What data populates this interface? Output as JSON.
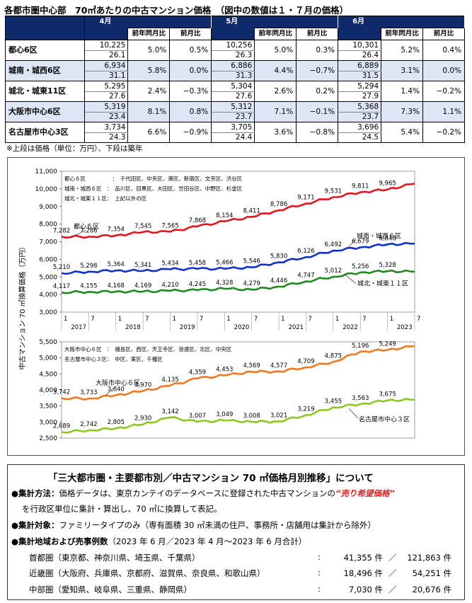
{
  "title": "各都市圏中心部　70㎡あたりの中古マンション価格　（図中の数値は１・７月の価格）",
  "table": {
    "months": [
      "4月",
      "5月",
      "6月"
    ],
    "sub_headers": [
      "前年同月比",
      "前月比"
    ],
    "rows": [
      {
        "area": "都心6区",
        "cells": [
          {
            "price": "10,225",
            "age": "26.1",
            "yoy": "5.0%",
            "mom": "0.5%"
          },
          {
            "price": "10,256",
            "age": "26.3",
            "yoy": "5.0%",
            "mom": "0.3%"
          },
          {
            "price": "10,301",
            "age": "26.4",
            "yoy": "5.2%",
            "mom": "0.4%"
          }
        ]
      },
      {
        "area": "城南・城西6区",
        "cells": [
          {
            "price": "6,934",
            "age": "31.1",
            "yoy": "5.8%",
            "mom": "0.0%"
          },
          {
            "price": "6,886",
            "age": "31.3",
            "yoy": "4.4%",
            "mom": "−0.7%"
          },
          {
            "price": "6,889",
            "age": "31.5",
            "yoy": "3.1%",
            "mom": "0.0%"
          }
        ]
      },
      {
        "area": "城北・城東11区",
        "cells": [
          {
            "price": "5,295",
            "age": "27.6",
            "yoy": "2.4%",
            "mom": "−0.3%"
          },
          {
            "price": "5,304",
            "age": "27.6",
            "yoy": "2.6%",
            "mom": "0.2%"
          },
          {
            "price": "5,294",
            "age": "27.9",
            "yoy": "1.4%",
            "mom": "−0.2%"
          }
        ]
      },
      {
        "area": "大阪市中心6区",
        "cells": [
          {
            "price": "5,319",
            "age": "23.4",
            "yoy": "8.1%",
            "mom": "0.8%"
          },
          {
            "price": "5,312",
            "age": "23.7",
            "yoy": "7.1%",
            "mom": "−0.1%"
          },
          {
            "price": "5,368",
            "age": "23.7",
            "yoy": "7.3%",
            "mom": "1.1%"
          }
        ]
      },
      {
        "area": "名古屋市中心3区",
        "cells": [
          {
            "price": "3,734",
            "age": "24.3",
            "yoy": "6.6%",
            "mom": "−0.9%"
          },
          {
            "price": "3,705",
            "age": "24.4",
            "yoy": "3.6%",
            "mom": "−0.8%"
          },
          {
            "price": "3,696",
            "age": "24.5",
            "yoy": "5.4%",
            "mom": "−0.2%"
          }
        ]
      }
    ],
    "note": "※上段は価格（単位：万円）、下段は築年"
  },
  "chart_data": {
    "type": "line",
    "ylabel": "中古マンション 70 ㎡換算価格（万円）",
    "x": [
      "2017-01",
      "2017-07",
      "2018-01",
      "2018-07",
      "2019-01",
      "2019-07",
      "2020-01",
      "2020-07",
      "2021-01",
      "2021-07",
      "2022-01",
      "2022-07",
      "2023-01",
      "2023-06"
    ],
    "x_tick_labels": [
      "1",
      "7",
      "1",
      "7",
      "1",
      "7",
      "1",
      "7",
      "1",
      "7",
      "1",
      "7",
      "1",
      "7"
    ],
    "year_labels": [
      "2017",
      "2018",
      "2019",
      "2020",
      "2021",
      "2022",
      "2023"
    ],
    "panels": [
      {
        "ylim": [
          3000,
          11000
        ],
        "yticks": [
          "3,000",
          "4,000",
          "5,000",
          "6,000",
          "7,000",
          "8,000",
          "9,000",
          "10,000",
          "11,000"
        ],
        "legend": [
          "都心６区　　　　　：　千代田区、中央区、港区、新宿区、文京区、渋谷区",
          "城南・城西６区　：　品川区、目黒区、大田区、世田谷区、中野区、杉並区",
          "城北・城東１１区：　上記以外の区"
        ],
        "series": [
          {
            "name": "都心６区",
            "color": "#E8141A",
            "values": [
              7282,
              7286,
              7354,
              7545,
              7565,
              7868,
              8154,
              8411,
              8786,
              9171,
              9531,
              9811,
              9965,
              10301
            ],
            "labels": [
              "7,282",
              "7,286",
              "7,354",
              "7,545",
              "7,565",
              "7,868",
              "8,154",
              "8,411",
              "8,786",
              "9,171",
              "9,531",
              "9,811",
              "9,965",
              ""
            ]
          },
          {
            "name": "城南・城西６区",
            "color": "#1030D0",
            "values": [
              5210,
              5298,
              5364,
              5341,
              5434,
              5458,
              5466,
              5546,
              5830,
              6126,
              6492,
              6679,
              6848,
              6889
            ],
            "labels": [
              "5,210",
              "5,298",
              "5,364",
              "5,341",
              "5,434",
              "5,458",
              "5,466",
              "5,546",
              "5,830",
              "6,126",
              "6,492",
              "6,679",
              "6,848",
              ""
            ]
          },
          {
            "name": "城北・城東１１区",
            "color": "#1E8A1E",
            "values": [
              4117,
              4155,
              4168,
              4169,
              4210,
              4245,
              4328,
              4279,
              4446,
              4747,
              5012,
              5256,
              5328,
              5294
            ],
            "labels": [
              "4,117",
              "4,155",
              "4,168",
              "4,169",
              "4,210",
              "4,245",
              "4,328",
              "4,279",
              "4,446",
              "4,747",
              "5,012",
              "5,256",
              "5,328",
              ""
            ]
          }
        ]
      },
      {
        "ylim": [
          2500,
          5500
        ],
        "yticks": [
          "2,500",
          "3,000",
          "3,500",
          "4,000",
          "4,500",
          "5,000",
          "5,500"
        ],
        "legend": [
          "大阪市中心６区　：　福島区、西区、天王寺区、浪速区、北区、中央区",
          "名古屋市中心３区：　中区、東区、千種区"
        ],
        "series": [
          {
            "name": "大阪市中心６区",
            "color": "#F07820",
            "values": [
              3742,
              3733,
              3840,
              3970,
              4135,
              4359,
              4453,
              4569,
              4577,
              4709,
              4875,
              5196,
              5249,
              5368
            ],
            "labels": [
              "3,742",
              "3,733",
              "3,840",
              "3,970",
              "4,135",
              "4,359",
              "4,453",
              "4,569",
              "4,577",
              "4,709",
              "4,875",
              "5,196",
              "5,249",
              ""
            ]
          },
          {
            "name": "名古屋市中心３区",
            "color": "#8CC820",
            "values": [
              2689,
              2742,
              2805,
              2930,
              3142,
              3007,
              3049,
              3008,
              3021,
              3219,
              3455,
              3563,
              3675,
              3696
            ],
            "labels": [
              "2,689",
              "2,742",
              "2,805",
              "2,930",
              "3,142",
              "3,007",
              "3,049",
              "3,008",
              "3,021",
              "3,219",
              "3,455",
              "3,563",
              "3,675",
              ""
            ]
          }
        ]
      }
    ]
  },
  "info": {
    "heading": "「三大都市圏・主要都市別／中古マンション 70 ㎡価格月別推移」について",
    "bullet1_label": "●集計方法：",
    "bullet1_text_a": "価格データは、東京カンテイのデータベースに登録された中古マンションの",
    "bullet1_highlight": "“売り希望価格”",
    "bullet1_text_b": "を行政区単位に集計・算出し、70 ㎡に換算して表記。",
    "bullet2_label": "●集計対象：",
    "bullet2_text": "ファミリータイプのみ（専有面積 30 ㎡未満の住戸、事務所・店舗用は集計から除外）",
    "bullet3_label": "●集計地域および売事例数",
    "bullet3_text": "（2023 年 6 月／2023 年 4 月～2023 年 6 月合計）",
    "regions": [
      {
        "name": "首都圏（東京都、神奈川県、埼玉県、千葉県）",
        "a": "41,355 件",
        "b": "121,863 件"
      },
      {
        "name": "近畿圏（大阪府、兵庫県、京都府、滋賀県、奈良県、和歌山県）",
        "a": "18,496 件",
        "b": "54,251 件"
      },
      {
        "name": "中部圏（愛知県、岐阜県、三重県、静岡県）",
        "a": "7,030 件",
        "b": "20,676 件"
      }
    ],
    "colon": ":",
    "slash": "／"
  }
}
